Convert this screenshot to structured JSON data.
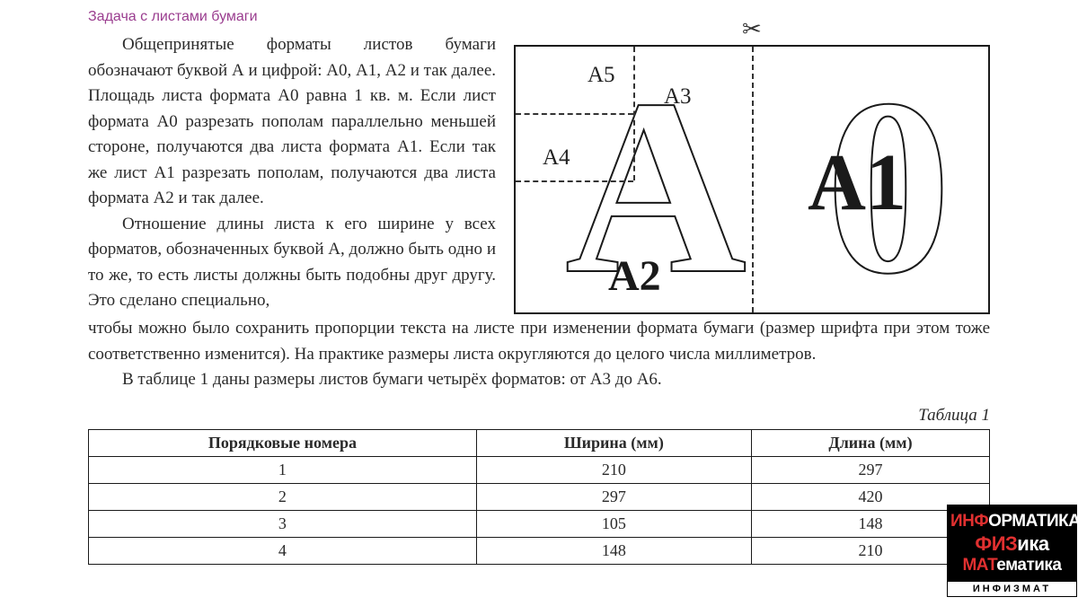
{
  "title": "Задача с листами бумаги",
  "paragraphs": {
    "p1": "Общепринятые форматы листов бумаги обозначают буквой А и цифрой: А0, А1, А2 и так далее. Площадь листа формата А0 равна 1 кв. м. Если лист формата А0 разрезать пополам параллельно меньшей стороне, получаются два листа формата А1. Если так же лист А1 разрезать пополам, получаются два листа формата А2 и так далее.",
    "p2": "Отношение длины листа к его ширине у всех форматов, обозначенных буквой А, должно быть одно и то же, то есть листы должны быть подобны друг другу. Это сделано специально,",
    "p3": "чтобы можно было сохранить пропорции текста на листе при изменении формата бумаги (размер шрифта при этом тоже соответственно изменится). На практике размеры листа округляются до целого числа миллиметров.",
    "p4": "В таблице 1 даны размеры листов бумаги четырёх форматов: от А3 до А6."
  },
  "diagram": {
    "labels": {
      "a5": "А5",
      "a3": "А3",
      "a4": "А4",
      "a2": "А2",
      "a1": "А1"
    },
    "big_letters": {
      "A": "A",
      "zero": "0"
    }
  },
  "table": {
    "caption": "Таблица 1",
    "headers": [
      "Порядковые номера",
      "Ширина (мм)",
      "Длина (мм)"
    ],
    "rows": [
      [
        "1",
        "210",
        "297"
      ],
      [
        "2",
        "297",
        "420"
      ],
      [
        "3",
        "105",
        "148"
      ],
      [
        "4",
        "148",
        "210"
      ]
    ]
  },
  "logo": {
    "line1_pre": "ИНФ",
    "line1_mid": "ОРМ",
    "line1_post": "АТИКА",
    "line2_pre": "ФИЗ",
    "line2_post": "ика",
    "line3_pre": "МАТ",
    "line3_post": "ематика",
    "bottom": "ИНФИЗМАТ"
  },
  "colors": {
    "title": "#9a3d8f",
    "text": "#2a2a2a",
    "border": "#1a1a1a",
    "logo_bg": "#000000",
    "logo_fg": "#ffffff",
    "logo_accent": "#e03030"
  }
}
